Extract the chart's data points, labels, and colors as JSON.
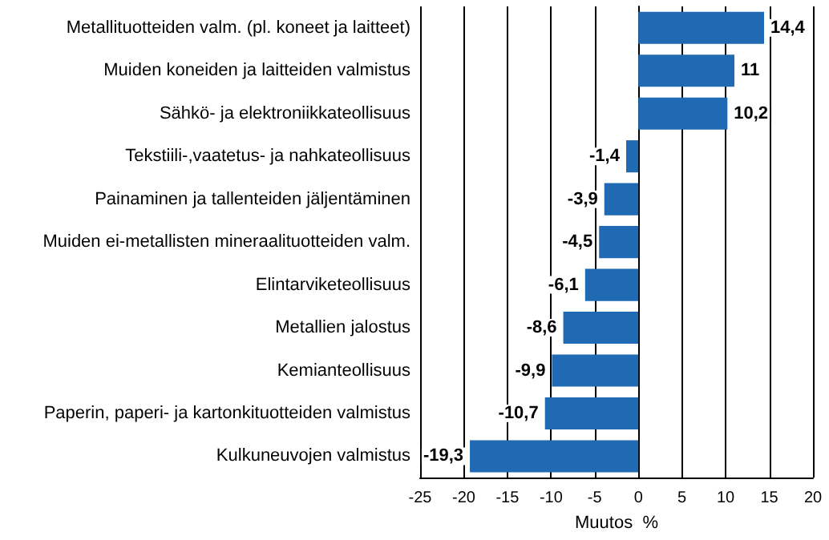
{
  "chart_data": {
    "type": "bar",
    "orientation": "horizontal",
    "categories": [
      "Metallituotteiden valm. (pl. koneet ja laitteet)",
      "Muiden koneiden ja laitteiden valmistus",
      "Sähkö- ja elektroniikkateollisuus",
      "Tekstiili-,vaatetus- ja nahkateollisuus",
      "Painaminen ja tallenteiden jäljentäminen",
      "Muiden ei-metallisten mineraalituotteiden valm.",
      "Elintarviketeollisuus",
      "Metallien jalostus",
      "Kemianteollisuus",
      "Paperin, paperi- ja kartonkituotteiden valmistus",
      "Kulkuneuvojen valmistus"
    ],
    "values": [
      14.4,
      11,
      10.2,
      -1.4,
      -3.9,
      -4.5,
      -6.1,
      -8.6,
      -9.9,
      -10.7,
      -19.3
    ],
    "value_labels": [
      "14,4",
      "11",
      "10,2",
      "-1,4",
      "-3,9",
      "-4,5",
      "-6,1",
      "-8,6",
      "-9,9",
      "-10,7",
      "-19,3"
    ],
    "color": "#1f6ab2",
    "xlabel": "Muutos  %",
    "xlim": [
      -25,
      20
    ],
    "xticks": [
      -25,
      -20,
      -15,
      -10,
      -5,
      0,
      5,
      10,
      15,
      20
    ],
    "grid": "x"
  }
}
